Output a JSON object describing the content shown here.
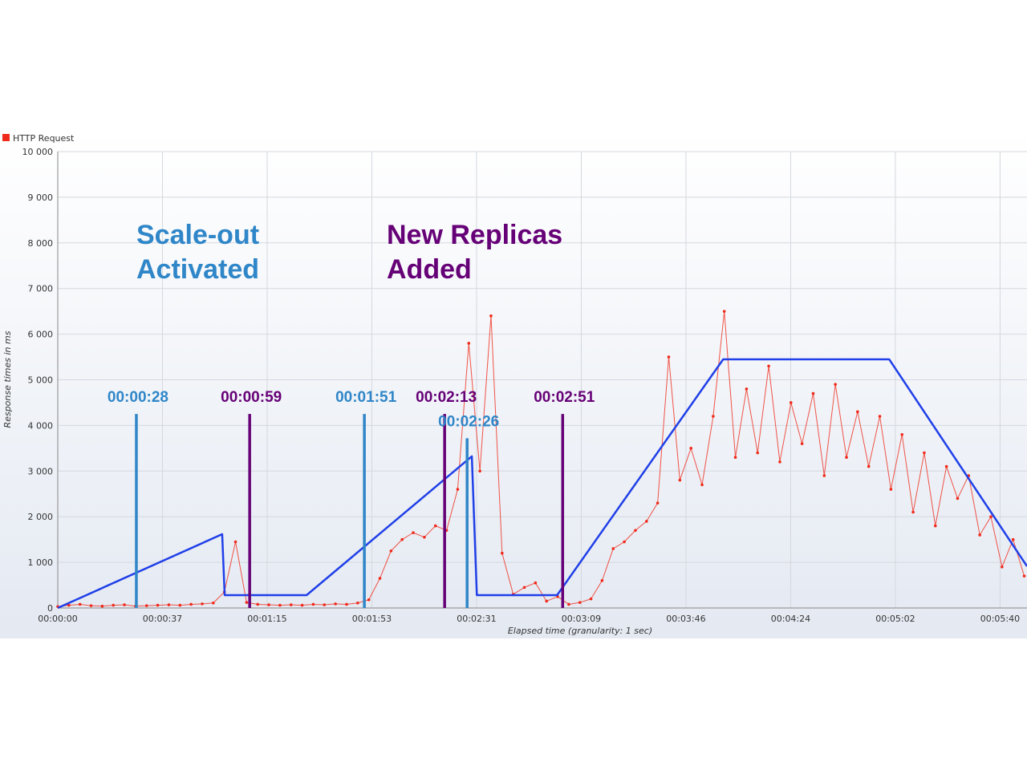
{
  "chart_data": {
    "type": "line",
    "x_label": "Elapsed time (granularity: 1 sec)",
    "y_label": "Response times in ms",
    "xlim": [
      0,
      349
    ],
    "ylim": [
      0,
      10000
    ],
    "xticks": [
      {
        "value": 0,
        "label": "00:00:00"
      },
      {
        "value": 37.7,
        "label": "00:00:37"
      },
      {
        "value": 75.4,
        "label": "00:01:15"
      },
      {
        "value": 113.1,
        "label": "00:01:53"
      },
      {
        "value": 150.8,
        "label": "00:02:31"
      },
      {
        "value": 188.5,
        "label": "00:03:09"
      },
      {
        "value": 226.2,
        "label": "00:03:46"
      },
      {
        "value": 263.9,
        "label": "00:04:24"
      },
      {
        "value": 301.6,
        "label": "00:05:02"
      },
      {
        "value": 339.3,
        "label": "00:05:40"
      }
    ],
    "yticks": [
      0,
      {
        "value": 1000,
        "label": "1 000"
      },
      {
        "value": 2000,
        "label": "2 000"
      },
      {
        "value": 3000,
        "label": "3 000"
      },
      {
        "value": 4000,
        "label": "4 000"
      },
      {
        "value": 5000,
        "label": "5 000"
      },
      {
        "value": 6000,
        "label": "6 000"
      },
      {
        "value": 7000,
        "label": "7 000"
      },
      {
        "value": 8000,
        "label": "8 000"
      },
      {
        "value": 9000,
        "label": "9 000"
      },
      {
        "value": 10000,
        "label": "10 000"
      }
    ],
    "grid": true,
    "legend": "top-left",
    "series": [
      {
        "name": "HTTP Request",
        "color": "#f02a1a",
        "markers": true,
        "x": [
          0,
          4,
          8,
          12,
          16,
          20,
          24,
          28,
          32,
          36,
          40,
          44,
          48,
          52,
          56,
          60,
          64,
          68,
          72,
          76,
          80,
          84,
          88,
          92,
          96,
          100,
          104,
          108,
          112,
          116,
          120,
          124,
          128,
          132,
          136,
          140,
          144,
          148,
          152,
          156,
          160,
          164,
          168,
          172,
          176,
          180,
          184,
          188,
          192,
          196,
          200,
          204,
          208,
          212,
          216,
          220,
          224,
          228,
          232,
          236,
          240,
          244,
          248,
          252,
          256,
          260,
          264,
          268,
          272,
          276,
          280,
          284,
          288,
          292,
          296,
          300,
          304,
          308,
          312,
          316,
          320,
          324,
          328,
          332,
          336,
          340,
          344,
          348
        ],
        "values": [
          30,
          60,
          80,
          50,
          40,
          60,
          70,
          40,
          50,
          60,
          70,
          60,
          80,
          90,
          110,
          350,
          1450,
          120,
          80,
          70,
          60,
          70,
          60,
          80,
          70,
          90,
          80,
          110,
          180,
          650,
          1250,
          1500,
          1650,
          1550,
          1800,
          1700,
          2600,
          5800,
          3000,
          6400,
          1200,
          300,
          450,
          550,
          150,
          250,
          80,
          120,
          200,
          600,
          1300,
          1450,
          1700,
          1900,
          2300,
          5500,
          2800,
          3500,
          2700,
          4200,
          6500,
          3300,
          4800,
          3400,
          5300,
          3200,
          4500,
          3600,
          4700,
          2900,
          4900,
          3300,
          4300,
          3100,
          4200,
          2600,
          3800,
          2100,
          3400,
          1800,
          3100,
          2400,
          2900,
          1600,
          2000,
          900,
          1500,
          700
        ]
      },
      {
        "color": "#1f3fe8",
        "markers": false,
        "x": [
          0,
          59.2,
          60.1,
          89.6,
          149.1,
          150.9,
          179.8,
          239.6,
          299.4,
          349
        ],
        "values": [
          0,
          1617,
          281,
          281,
          3322,
          281,
          281,
          5448,
          5448,
          914
        ]
      }
    ],
    "annotations": [
      {
        "label": "00:00:28",
        "x": 28.3,
        "y": 4250,
        "color": "#2f86c8"
      },
      {
        "label": "00:00:59",
        "x": 69.1,
        "y": 4250,
        "color": "#660077"
      },
      {
        "label": "00:01:51",
        "x": 110.4,
        "y": 4250,
        "color": "#2f86c8"
      },
      {
        "label": "00:02:13",
        "x": 139.3,
        "y": 4250,
        "color": "#660077"
      },
      {
        "label": "00:02:26",
        "x": 147.4,
        "y": 3720,
        "color": "#2f86c8"
      },
      {
        "label": "00:02:51",
        "x": 181.8,
        "y": 4250,
        "color": "#660077"
      }
    ],
    "callouts": [
      {
        "lines": [
          "Scale-out",
          "Activated"
        ],
        "color": "#2f86c8"
      },
      {
        "lines": [
          "New Replicas",
          "Added"
        ],
        "color": "#660077"
      }
    ]
  }
}
